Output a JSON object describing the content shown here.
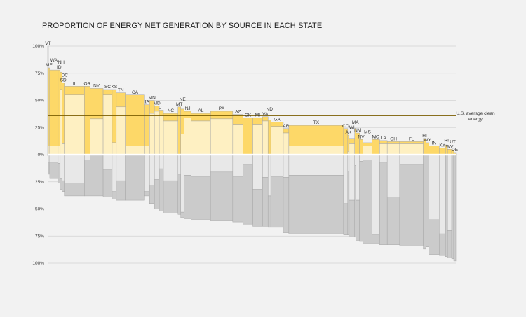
{
  "chart_data": {
    "type": "bar",
    "title": "PROPORTION OF ENERGY NET GENERATION BY SOURCE IN EACH STATE",
    "y_ticks_top": [
      "100%",
      "75%",
      "50%",
      "25%",
      "0%"
    ],
    "y_ticks_bottom": [
      "25%",
      "50%",
      "75%",
      "100%"
    ],
    "y_range": [
      -1,
      1
    ],
    "grid": true,
    "reference_line": {
      "value": 0.36,
      "label_line1": "U.S. average clean",
      "label_line2": "energy",
      "color": "#7a5c00"
    },
    "colors": {
      "clean_a": "#fdd868",
      "clean_b": "#fef0c2",
      "fossil_a": "#e8e8e8",
      "fossil_b": "#cbcbcb",
      "outline": "#a6a6a6",
      "grid": "#d3d3d3",
      "zero_band": "#ffffff"
    },
    "states": [
      {
        "label": "VT",
        "w": 1,
        "t": 1.0,
        "c2": 0.0,
        "f2": 0.0,
        "b": 0.01
      },
      {
        "label": "ME",
        "w": 2,
        "t": 0.8,
        "c2": 0.08,
        "f2": 0.07,
        "b": 0.18
      },
      {
        "label": "WA",
        "w": 12,
        "t": 0.78,
        "c2": 0.08,
        "f2": 0.07,
        "b": 0.22
      },
      {
        "label": "ID",
        "w": 3,
        "t": 0.78,
        "c2": 0.08,
        "f2": 0.08,
        "b": 0.26
      },
      {
        "label": "NH",
        "w": 3,
        "t": 0.76,
        "c2": 0.6,
        "f2": 0.22,
        "b": 0.32
      },
      {
        "label": "SD",
        "w": 3,
        "t": 0.66,
        "c2": 0.1,
        "f2": 0.24,
        "b": 0.34
      },
      {
        "label": "DC",
        "w": 1,
        "t": 0.63,
        "c2": 0.55,
        "f2": 0.26,
        "b": 0.38
      },
      {
        "label": "IL",
        "w": 28,
        "t": 0.63,
        "c2": 0.55,
        "f2": 0.26,
        "b": 0.38
      },
      {
        "label": "OR",
        "w": 8,
        "t": 0.63,
        "c2": 0.0,
        "f2": 0.05,
        "b": 0.38
      },
      {
        "label": "NY",
        "w": 19,
        "t": 0.61,
        "c2": 0.33,
        "f2": 0.0,
        "b": 0.38
      },
      {
        "label": "SC",
        "w": 13,
        "t": 0.6,
        "c2": 0.55,
        "f2": 0.14,
        "b": 0.39
      },
      {
        "label": "KS",
        "w": 6,
        "t": 0.6,
        "c2": 0.11,
        "f2": 0.34,
        "b": 0.41
      },
      {
        "label": "TN",
        "w": 13,
        "t": 0.57,
        "c2": 0.44,
        "f2": 0.24,
        "b": 0.42
      },
      {
        "label": "CA",
        "w": 28,
        "t": 0.55,
        "c2": 0.08,
        "f2": 0.0,
        "b": 0.42
      },
      {
        "label": "IA",
        "w": 7,
        "t": 0.46,
        "c2": 0.08,
        "f2": 0.34,
        "b": 0.38
      },
      {
        "label": "MN",
        "w": 7,
        "t": 0.5,
        "c2": 0.38,
        "f2": 0.28,
        "b": 0.45
      },
      {
        "label": "MD",
        "w": 7,
        "t": 0.45,
        "c2": 0.4,
        "f2": 0.23,
        "b": 0.5
      },
      {
        "label": "CT",
        "w": 6,
        "t": 0.41,
        "c2": 0.36,
        "f2": 0.13,
        "b": 0.52
      },
      {
        "label": "NC",
        "w": 21,
        "t": 0.38,
        "c2": 0.31,
        "f2": 0.24,
        "b": 0.54
      },
      {
        "label": "MT",
        "w": 4,
        "t": 0.44,
        "c2": 0.0,
        "f2": 0.18,
        "b": 0.55
      },
      {
        "label": "NE",
        "w": 5,
        "t": 0.42,
        "c2": 0.19,
        "f2": 0.53,
        "b": 0.58
      },
      {
        "label": "NJ",
        "w": 10,
        "t": 0.4,
        "c2": 0.34,
        "f2": 0.19,
        "b": 0.59
      },
      {
        "label": "AL",
        "w": 28,
        "t": 0.38,
        "c2": 0.31,
        "f2": 0.2,
        "b": 0.6
      },
      {
        "label": "PA",
        "w": 32,
        "t": 0.4,
        "c2": 0.33,
        "f2": 0.16,
        "b": 0.61
      },
      {
        "label": "AZ",
        "w": 15,
        "t": 0.37,
        "c2": 0.28,
        "f2": 0.2,
        "b": 0.62
      },
      {
        "label": "OK",
        "w": 14,
        "t": 0.34,
        "c2": 0.0,
        "f2": 0.09,
        "b": 0.64
      },
      {
        "label": "MI",
        "w": 14,
        "t": 0.34,
        "c2": 0.28,
        "f2": 0.32,
        "b": 0.66
      },
      {
        "label": "VA",
        "w": 8,
        "t": 0.35,
        "c2": 0.31,
        "f2": 0.21,
        "b": 0.66
      },
      {
        "label": "ND",
        "w": 4,
        "t": 0.32,
        "c2": 0.0,
        "f2": 0.38,
        "b": 0.67
      },
      {
        "label": "GA",
        "w": 18,
        "t": 0.3,
        "c2": 0.26,
        "f2": 0.2,
        "b": 0.67
      },
      {
        "label": "AR",
        "w": 8,
        "t": 0.24,
        "c2": 0.2,
        "f2": 0.21,
        "b": 0.72
      },
      {
        "label": "TX",
        "w": 79,
        "t": 0.27,
        "c2": 0.08,
        "f2": 0.19,
        "b": 0.73
      },
      {
        "label": "CO",
        "w": 6,
        "t": 0.24,
        "c2": 0.0,
        "f2": 0.45,
        "b": 0.74
      },
      {
        "label": "AK",
        "w": 2,
        "t": 0.18,
        "c2": 0.03,
        "f2": 0.15,
        "b": 0.74
      },
      {
        "label": "WI",
        "w": 8,
        "t": 0.15,
        "c2": 0.1,
        "f2": 0.42,
        "b": 0.75
      },
      {
        "label": "MA",
        "w": 2,
        "t": 0.24,
        "c2": 0.0,
        "f2": 0.1,
        "b": 0.76
      },
      {
        "label": "NM",
        "w": 5,
        "t": 0.2,
        "c2": 0.0,
        "f2": 0.42,
        "b": 0.79
      },
      {
        "label": "NV",
        "w": 5,
        "t": 0.14,
        "c2": 0.0,
        "f2": 0.06,
        "b": 0.8
      },
      {
        "label": "MS",
        "w": 13,
        "t": 0.11,
        "c2": 0.08,
        "f2": 0.05,
        "b": 0.82
      },
      {
        "label": "MO",
        "w": 11,
        "t": 0.14,
        "c2": 0.0,
        "f2": 0.74,
        "b": 0.82
      },
      {
        "label": "LA",
        "w": 11,
        "t": 0.13,
        "c2": 0.1,
        "f2": 0.07,
        "b": 0.83
      },
      {
        "label": "OH",
        "w": 18,
        "t": 0.12,
        "c2": 0.1,
        "f2": 0.39,
        "b": 0.83
      },
      {
        "label": "FL",
        "w": 34,
        "t": 0.12,
        "c2": 0.1,
        "f2": 0.09,
        "b": 0.84
      },
      {
        "label": "HI",
        "w": 4,
        "t": 0.15,
        "c2": 0.0,
        "f2": 0.0,
        "b": 0.87
      },
      {
        "label": "WY",
        "w": 4,
        "t": 0.11,
        "c2": 0.0,
        "f2": 0.0,
        "b": 0.85
      },
      {
        "label": "IN",
        "w": 15,
        "t": 0.08,
        "c2": 0.0,
        "f2": 0.6,
        "b": 0.92
      },
      {
        "label": "KY",
        "w": 9,
        "t": 0.06,
        "c2": 0.0,
        "f2": 0.73,
        "b": 0.93
      },
      {
        "label": "RI",
        "w": 3,
        "t": 0.09,
        "c2": 0.0,
        "f2": 0.0,
        "b": 0.94
      },
      {
        "label": "WV",
        "w": 6,
        "t": 0.05,
        "c2": 0.0,
        "f2": 0.7,
        "b": 0.95
      },
      {
        "label": "UT",
        "w": 3,
        "t": 0.04,
        "c2": 0.0,
        "f2": 0.0,
        "b": 0.96
      },
      {
        "label": "DE",
        "w": 3,
        "t": 0.02,
        "c2": 0.0,
        "f2": 0.0,
        "b": 0.98
      }
    ]
  }
}
